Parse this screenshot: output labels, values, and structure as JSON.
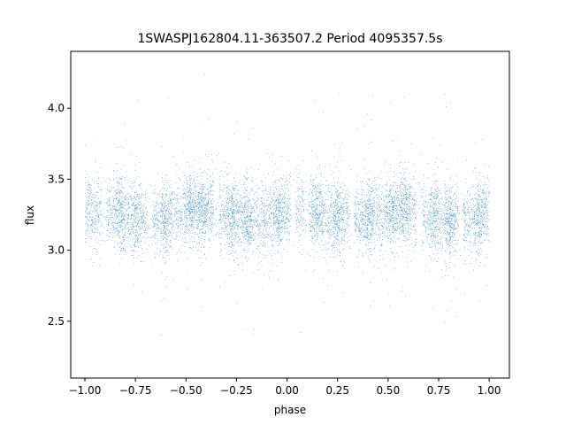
{
  "chart_data": {
    "type": "scatter",
    "title": "1SWASPJ162804.11-363507.2 Period 4095357.5s",
    "xlabel": "phase",
    "ylabel": "flux",
    "xlim": [
      -1.07,
      1.1
    ],
    "ylim": [
      2.1,
      4.4
    ],
    "xticks": [
      -1.0,
      -0.75,
      -0.5,
      -0.25,
      0.0,
      0.25,
      0.5,
      0.75,
      1.0
    ],
    "xtick_labels": [
      "−1.00",
      "−0.75",
      "−0.50",
      "−0.25",
      "0.00",
      "0.25",
      "0.50",
      "0.75",
      "1.00"
    ],
    "yticks": [
      2.5,
      3.0,
      3.5,
      4.0
    ],
    "ytick_labels": [
      "2.5",
      "3.0",
      "3.5",
      "4.0"
    ],
    "grid": false,
    "marker_color": "#1f77b4",
    "marker": "tiny-dot",
    "series_model": {
      "description_note": "",
      "phase_range": [
        -1.0,
        1.0
      ],
      "flux_baseline": 3.25,
      "flux_sigma": 0.13,
      "flux_min": 2.2,
      "flux_max": 4.3,
      "n_points": 9000
    }
  },
  "colors": {
    "background": "#ffffff",
    "axes": "#000000",
    "points": "#1f77b4"
  }
}
